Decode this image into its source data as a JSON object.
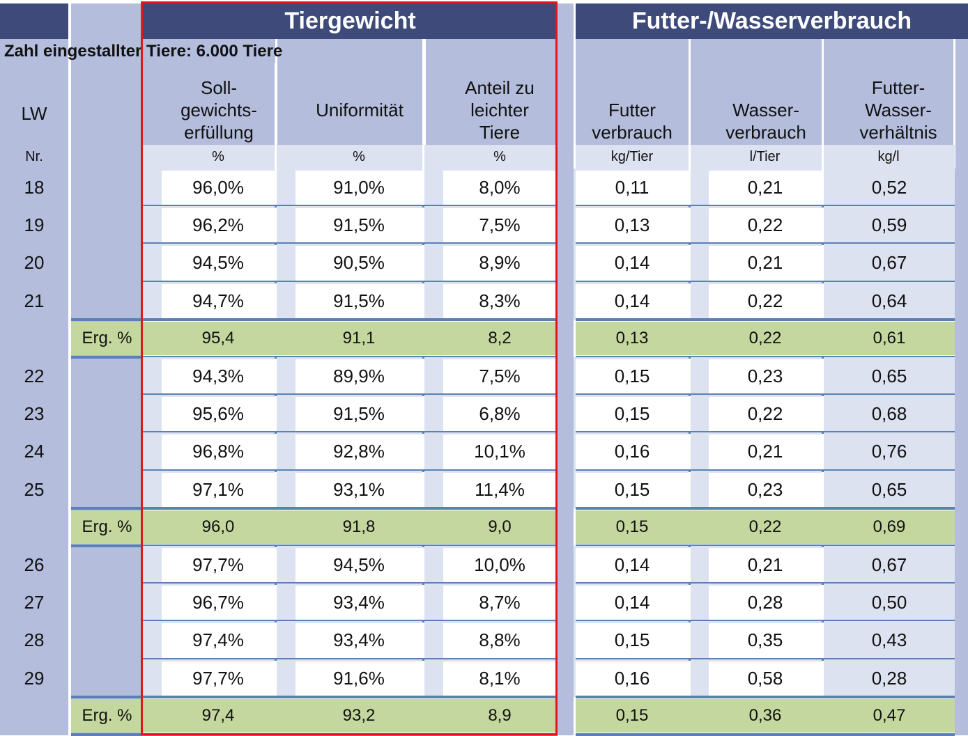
{
  "header": {
    "group_tiergewicht": "Tiergewicht",
    "group_futter": "Futter-/Wasserverbrauch",
    "note": "Zahl eingestallter Tiere: 6.000 Tiere"
  },
  "columns": {
    "lw": {
      "label": "LW",
      "unit": "Nr."
    },
    "soll": {
      "label": "Soll-\ngewichts-\nerfüllung",
      "unit": "%"
    },
    "uniform": {
      "label": "Uniformität",
      "unit": "%"
    },
    "anteil": {
      "label": "Anteil zu\nleichter\nTiere",
      "unit": "%"
    },
    "futter": {
      "label": "Futter\nverbrauch",
      "unit": "kg/Tier"
    },
    "wasser": {
      "label": "Wasser-\nverbrauch",
      "unit": "l/Tier"
    },
    "verhaeltnis": {
      "label": "Futter-\nWasser-\nverhältnis",
      "unit": "kg/l"
    }
  },
  "rows": [
    {
      "type": "data",
      "lw": "18",
      "soll": "96,0%",
      "uniform": "91,0%",
      "anteil": "8,0%",
      "futter": "0,11",
      "wasser": "0,21",
      "verhaeltnis": "0,52"
    },
    {
      "type": "data",
      "lw": "19",
      "soll": "96,2%",
      "uniform": "91,5%",
      "anteil": "7,5%",
      "futter": "0,13",
      "wasser": "0,22",
      "verhaeltnis": "0,59"
    },
    {
      "type": "data",
      "lw": "20",
      "soll": "94,5%",
      "uniform": "90,5%",
      "anteil": "8,9%",
      "futter": "0,14",
      "wasser": "0,21",
      "verhaeltnis": "0,67"
    },
    {
      "type": "data",
      "lw": "21",
      "soll": "94,7%",
      "uniform": "91,5%",
      "anteil": "8,3%",
      "futter": "0,14",
      "wasser": "0,22",
      "verhaeltnis": "0,64"
    },
    {
      "type": "sum",
      "label": "Erg. %",
      "soll": "95,4",
      "uniform": "91,1",
      "anteil": "8,2",
      "futter": "0,13",
      "wasser": "0,22",
      "verhaeltnis": "0,61"
    },
    {
      "type": "data",
      "lw": "22",
      "soll": "94,3%",
      "uniform": "89,9%",
      "anteil": "7,5%",
      "futter": "0,15",
      "wasser": "0,23",
      "verhaeltnis": "0,65"
    },
    {
      "type": "data",
      "lw": "23",
      "soll": "95,6%",
      "uniform": "91,5%",
      "anteil": "6,8%",
      "futter": "0,15",
      "wasser": "0,22",
      "verhaeltnis": "0,68"
    },
    {
      "type": "data",
      "lw": "24",
      "soll": "96,8%",
      "uniform": "92,8%",
      "anteil": "10,1%",
      "futter": "0,16",
      "wasser": "0,21",
      "verhaeltnis": "0,76"
    },
    {
      "type": "data",
      "lw": "25",
      "soll": "97,1%",
      "uniform": "93,1%",
      "anteil": "11,4%",
      "futter": "0,15",
      "wasser": "0,23",
      "verhaeltnis": "0,65"
    },
    {
      "type": "sum",
      "label": "Erg. %",
      "soll": "96,0",
      "uniform": "91,8",
      "anteil": "9,0",
      "futter": "0,15",
      "wasser": "0,22",
      "verhaeltnis": "0,69"
    },
    {
      "type": "data",
      "lw": "26",
      "soll": "97,7%",
      "uniform": "94,5%",
      "anteil": "10,0%",
      "futter": "0,14",
      "wasser": "0,21",
      "verhaeltnis": "0,67"
    },
    {
      "type": "data",
      "lw": "27",
      "soll": "96,7%",
      "uniform": "93,4%",
      "anteil": "8,7%",
      "futter": "0,14",
      "wasser": "0,28",
      "verhaeltnis": "0,50"
    },
    {
      "type": "data",
      "lw": "28",
      "soll": "97,4%",
      "uniform": "93,4%",
      "anteil": "8,8%",
      "futter": "0,15",
      "wasser": "0,35",
      "verhaeltnis": "0,43"
    },
    {
      "type": "data",
      "lw": "29",
      "soll": "97,7%",
      "uniform": "91,6%",
      "anteil": "8,1%",
      "futter": "0,16",
      "wasser": "0,58",
      "verhaeltnis": "0,28"
    },
    {
      "type": "sum",
      "label": "Erg. %",
      "soll": "97,4",
      "uniform": "93,2",
      "anteil": "8,9",
      "futter": "0,15",
      "wasser": "0,36",
      "verhaeltnis": "0,47"
    }
  ],
  "colors": {
    "header_dark": "#3D4A7A",
    "lavender": "#B4BEDC",
    "pale": "#DDE2F0",
    "sum_green": "#C4D79E",
    "divider": "#5A80B4",
    "highlight_red": "#E8141C"
  }
}
